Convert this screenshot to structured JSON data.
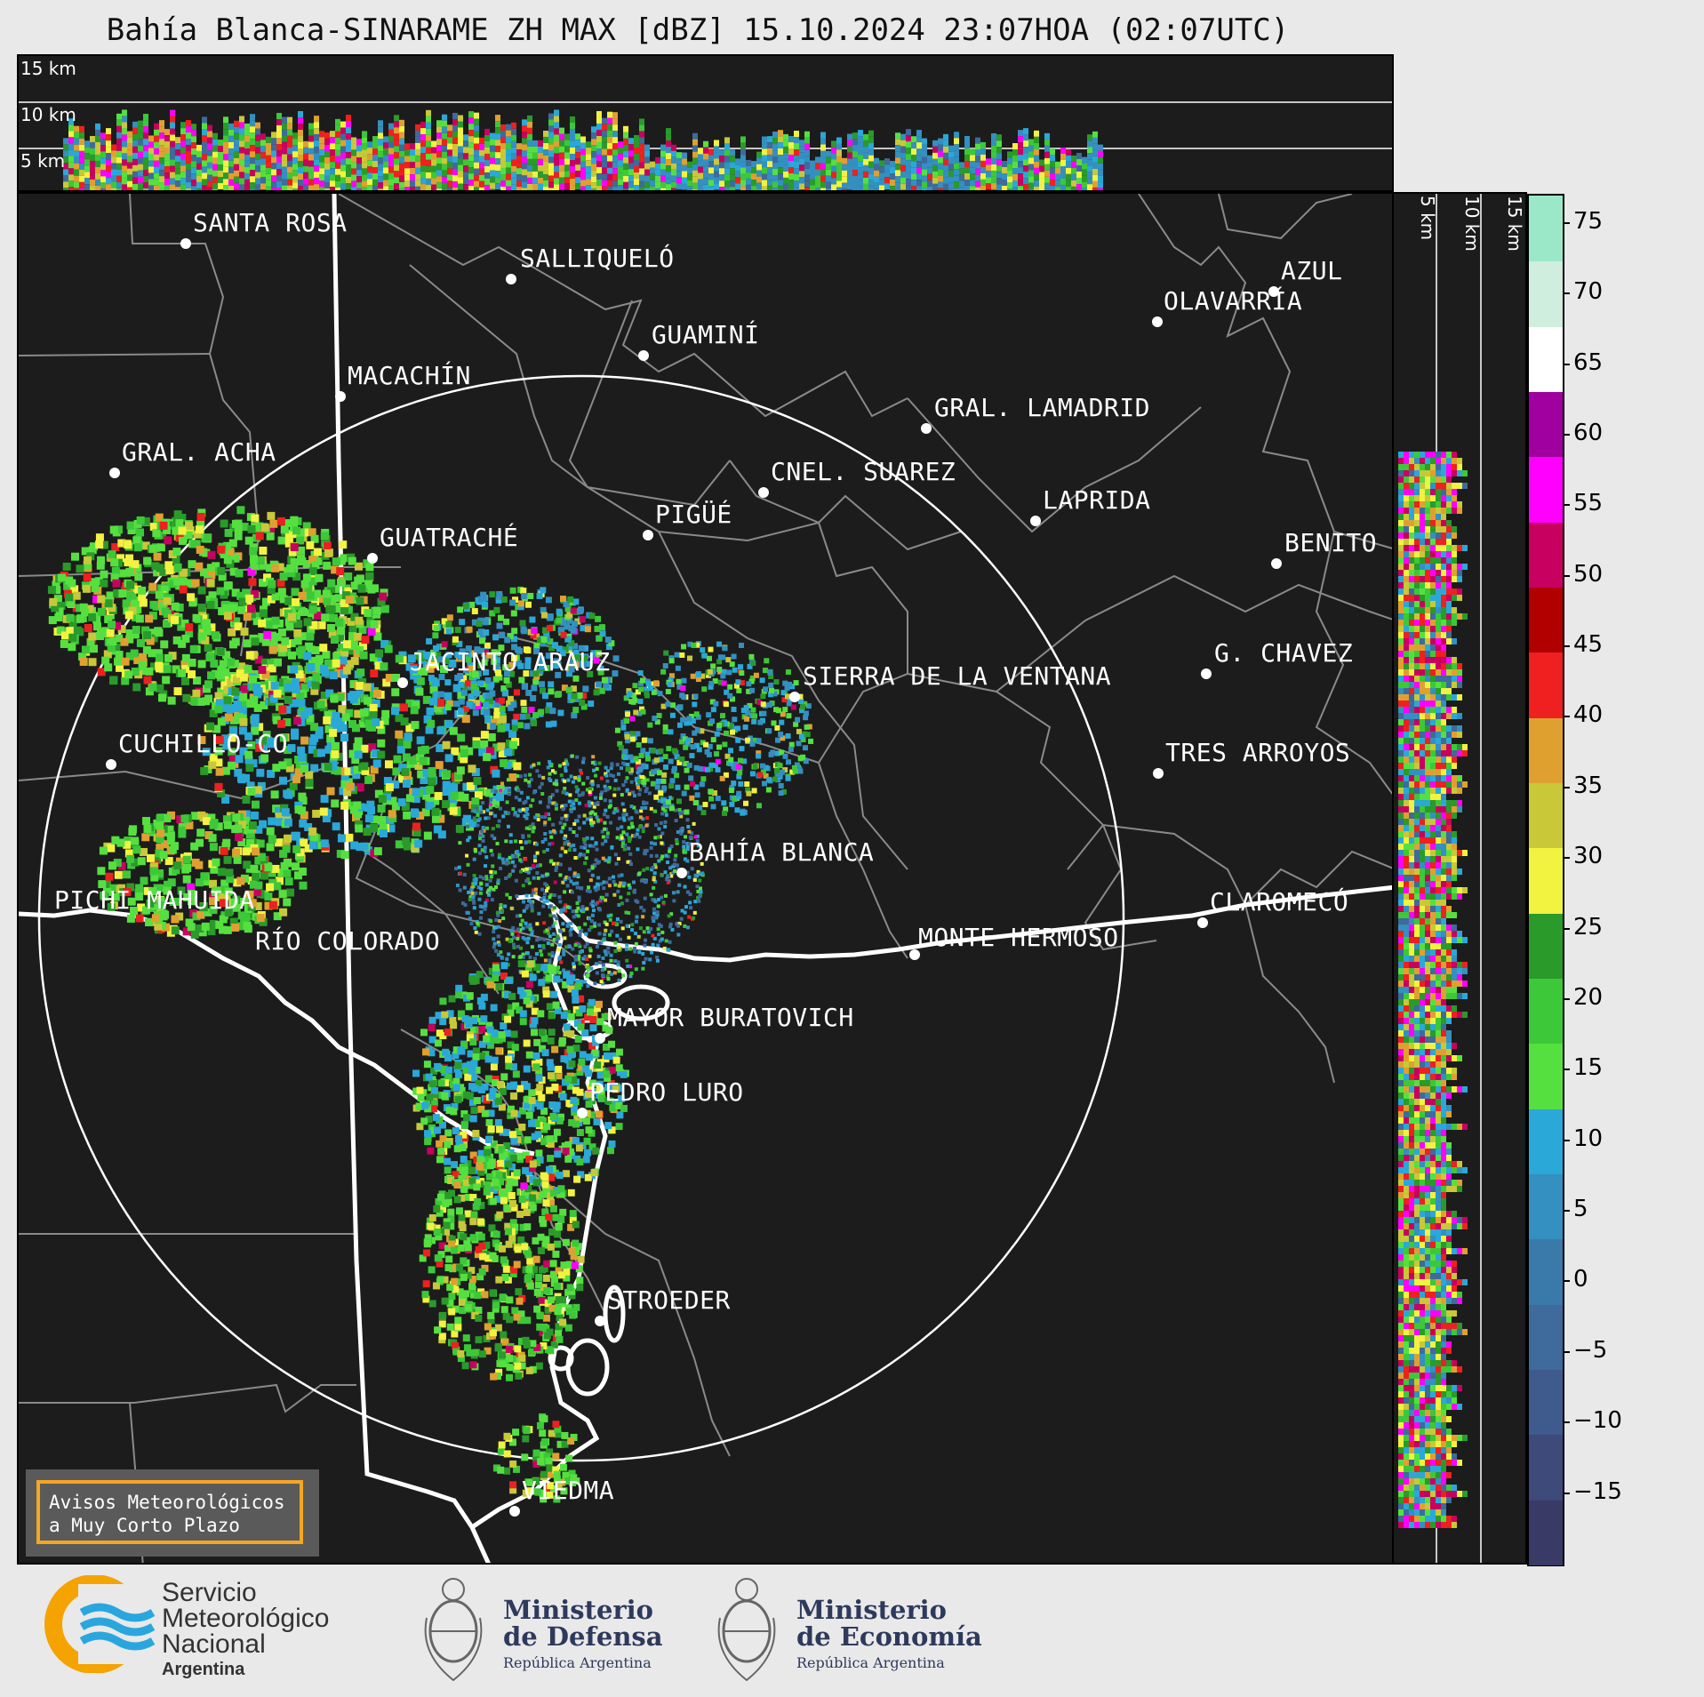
{
  "title": "Bahía Blanca-SINARAME ZH MAX [dBZ] 15.10.2024 23:07HOA (02:07UTC)",
  "height_panel": {
    "labels": [
      "15 km",
      "10 km",
      "5 km"
    ]
  },
  "side_panel": {
    "labels": [
      "5 km",
      "10 km",
      "15 km"
    ]
  },
  "cities": [
    {
      "name": "SANTA ROSA"
    },
    {
      "name": "SALLIQUELÓ"
    },
    {
      "name": "GUAMINÍ"
    },
    {
      "name": "AZUL"
    },
    {
      "name": "OLAVARRÍA"
    },
    {
      "name": "MACACHÍN"
    },
    {
      "name": "GRAL. LAMADRID"
    },
    {
      "name": "GRAL. ACHA"
    },
    {
      "name": "CNEL. SUAREZ"
    },
    {
      "name": "LAPRIDA"
    },
    {
      "name": "PIGÜÉ"
    },
    {
      "name": "GUATRACHÉ"
    },
    {
      "name": "BENITO"
    },
    {
      "name": "G. CHAVEZ"
    },
    {
      "name": "JACINTO ARAUZ"
    },
    {
      "name": "SIERRA DE LA VENTANA"
    },
    {
      "name": "CUCHILLO-CO"
    },
    {
      "name": "TRES ARROYOS"
    },
    {
      "name": "BAHÍA BLANCA"
    },
    {
      "name": "PICHI MAHUIDA"
    },
    {
      "name": "CLAROMECÓ"
    },
    {
      "name": "RÍO COLORADO"
    },
    {
      "name": "MONTE HERMOSO"
    },
    {
      "name": "MAYOR BURATOVICH"
    },
    {
      "name": "PEDRO LURO"
    },
    {
      "name": "STROEDER"
    },
    {
      "name": "VIEDMA"
    }
  ],
  "warning_box": {
    "line1": "Avisos Meteorológicos",
    "line2": "a Muy Corto Plazo"
  },
  "colorbar": {
    "unit": "dBZ",
    "ticks": [
      "75",
      "70",
      "65",
      "60",
      "55",
      "50",
      "45",
      "40",
      "35",
      "30",
      "25",
      "20",
      "15",
      "10",
      "5",
      "0",
      "−5",
      "−10",
      "−15"
    ],
    "range": [
      -20,
      77
    ],
    "colors": [
      "#3a3a66",
      "#3d4a7a",
      "#3f5a8c",
      "#3e6a9c",
      "#3a7aaa",
      "#3390c0",
      "#2aa8d8",
      "#55e040",
      "#3cc838",
      "#2a9a2a",
      "#f2f240",
      "#c8c838",
      "#e0a030",
      "#ee2020",
      "#b00000",
      "#c80060",
      "#ff00ff",
      "#a000a0",
      "#ffffff",
      "#cfeedd",
      "#9be8c8"
    ]
  },
  "footer": {
    "smn_line1": "Servicio",
    "smn_line2": "Meteorológico",
    "smn_line3": "Nacional",
    "smn_line4": "Argentina",
    "defensa_line1": "Ministerio",
    "defensa_line2": "de Defensa",
    "defensa_sub": "República Argentina",
    "economia_line1": "Ministerio",
    "economia_line2": "de Economía",
    "economia_sub": "República Argentina"
  }
}
